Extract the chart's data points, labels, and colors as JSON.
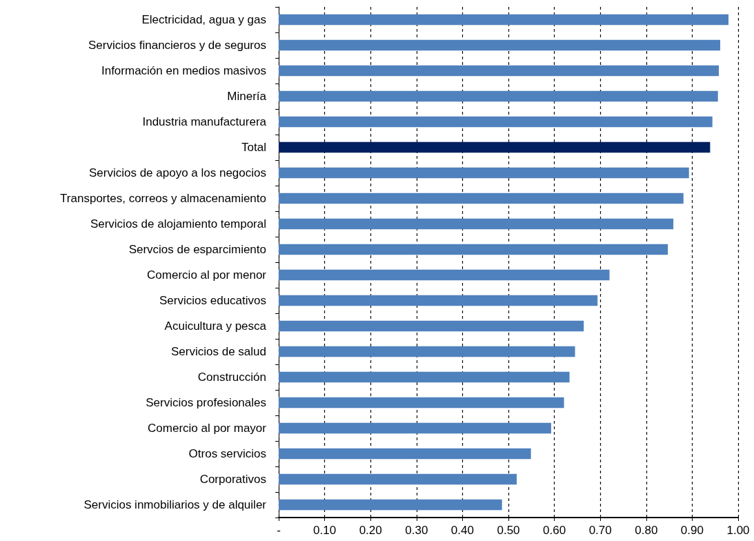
{
  "chart_data": {
    "type": "bar",
    "orientation": "horizontal",
    "categories": [
      "Electricidad, agua y gas",
      "Servicios financieros y de seguros",
      "Información en medios masivos",
      "Minería",
      "Industria manufacturera",
      "Total",
      "Servicios de apoyo a los negocios",
      "Transportes, correos y almacenamiento",
      "Servicios de alojamiento temporal",
      "Servcios de esparcimiento",
      "Comercio al por menor",
      "Servicios educativos",
      "Acuicultura y pesca",
      "Servicios de salud",
      "Construcción",
      "Servicios profesionales",
      "Comercio al por mayor",
      "Otros servicios",
      "Corporativos",
      "Servicios inmobiliarios y de alquiler"
    ],
    "values": [
      0.979,
      0.961,
      0.958,
      0.956,
      0.944,
      0.939,
      0.893,
      0.881,
      0.859,
      0.847,
      0.72,
      0.694,
      0.664,
      0.645,
      0.633,
      0.621,
      0.593,
      0.549,
      0.518,
      0.486
    ],
    "colors": [
      "#4f81bd",
      "#4f81bd",
      "#4f81bd",
      "#4f81bd",
      "#4f81bd",
      "#002060",
      "#4f81bd",
      "#4f81bd",
      "#4f81bd",
      "#4f81bd",
      "#4f81bd",
      "#4f81bd",
      "#4f81bd",
      "#4f81bd",
      "#4f81bd",
      "#4f81bd",
      "#4f81bd",
      "#4f81bd",
      "#4f81bd",
      "#4f81bd"
    ],
    "xlim": [
      0,
      1
    ],
    "xticks": [
      {
        "value": 0,
        "label": "-"
      },
      {
        "value": 0.1,
        "label": "0.10"
      },
      {
        "value": 0.2,
        "label": "0.20"
      },
      {
        "value": 0.3,
        "label": "0.30"
      },
      {
        "value": 0.4,
        "label": "0.40"
      },
      {
        "value": 0.5,
        "label": "0.50"
      },
      {
        "value": 0.6,
        "label": "0.60"
      },
      {
        "value": 0.7,
        "label": "0.70"
      },
      {
        "value": 0.8,
        "label": "0.80"
      },
      {
        "value": 0.9,
        "label": "0.90"
      },
      {
        "value": 1,
        "label": "1.00"
      }
    ],
    "grid": "x"
  }
}
